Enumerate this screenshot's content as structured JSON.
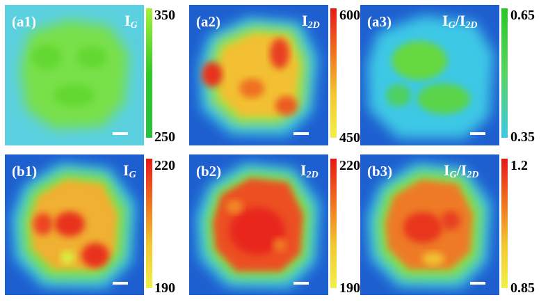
{
  "panels": [
    {
      "tag": "(a1)",
      "q": "I",
      "sub": "G",
      "sub2": "",
      "colorbar": {
        "max": "350",
        "min": "250",
        "scale": "green-cyan"
      }
    },
    {
      "tag": "(a2)",
      "q": "I",
      "sub": "2D",
      "sub2": "",
      "colorbar": {
        "max": "600",
        "min": "450",
        "scale": "red-yellow"
      }
    },
    {
      "tag": "(a3)",
      "q": "I",
      "sub": "G",
      "slash": "/I",
      "sub2": "2D",
      "colorbar": {
        "max": "0.65",
        "min": "0.35",
        "scale": "green-cyan"
      }
    },
    {
      "tag": "(b1)",
      "q": "I",
      "sub": "G",
      "sub2": "",
      "colorbar": {
        "max": "220",
        "min": "190",
        "scale": "red-yellow"
      }
    },
    {
      "tag": "(b2)",
      "q": "I",
      "sub": "2D",
      "sub2": "",
      "colorbar": {
        "max": "220",
        "min": "190",
        "scale": "red-yellow"
      }
    },
    {
      "tag": "(b3)",
      "q": "I",
      "sub": "G",
      "slash": "/I",
      "sub2": "2D",
      "colorbar": {
        "max": "1.2",
        "min": "0.85",
        "scale": "red-yellow"
      }
    }
  ],
  "colors": {
    "background_blue": "#1e5fd0",
    "cyan": "#3cc8e6",
    "green": "#6ee03c",
    "yellow": "#f2f030",
    "red": "#e8301c"
  }
}
